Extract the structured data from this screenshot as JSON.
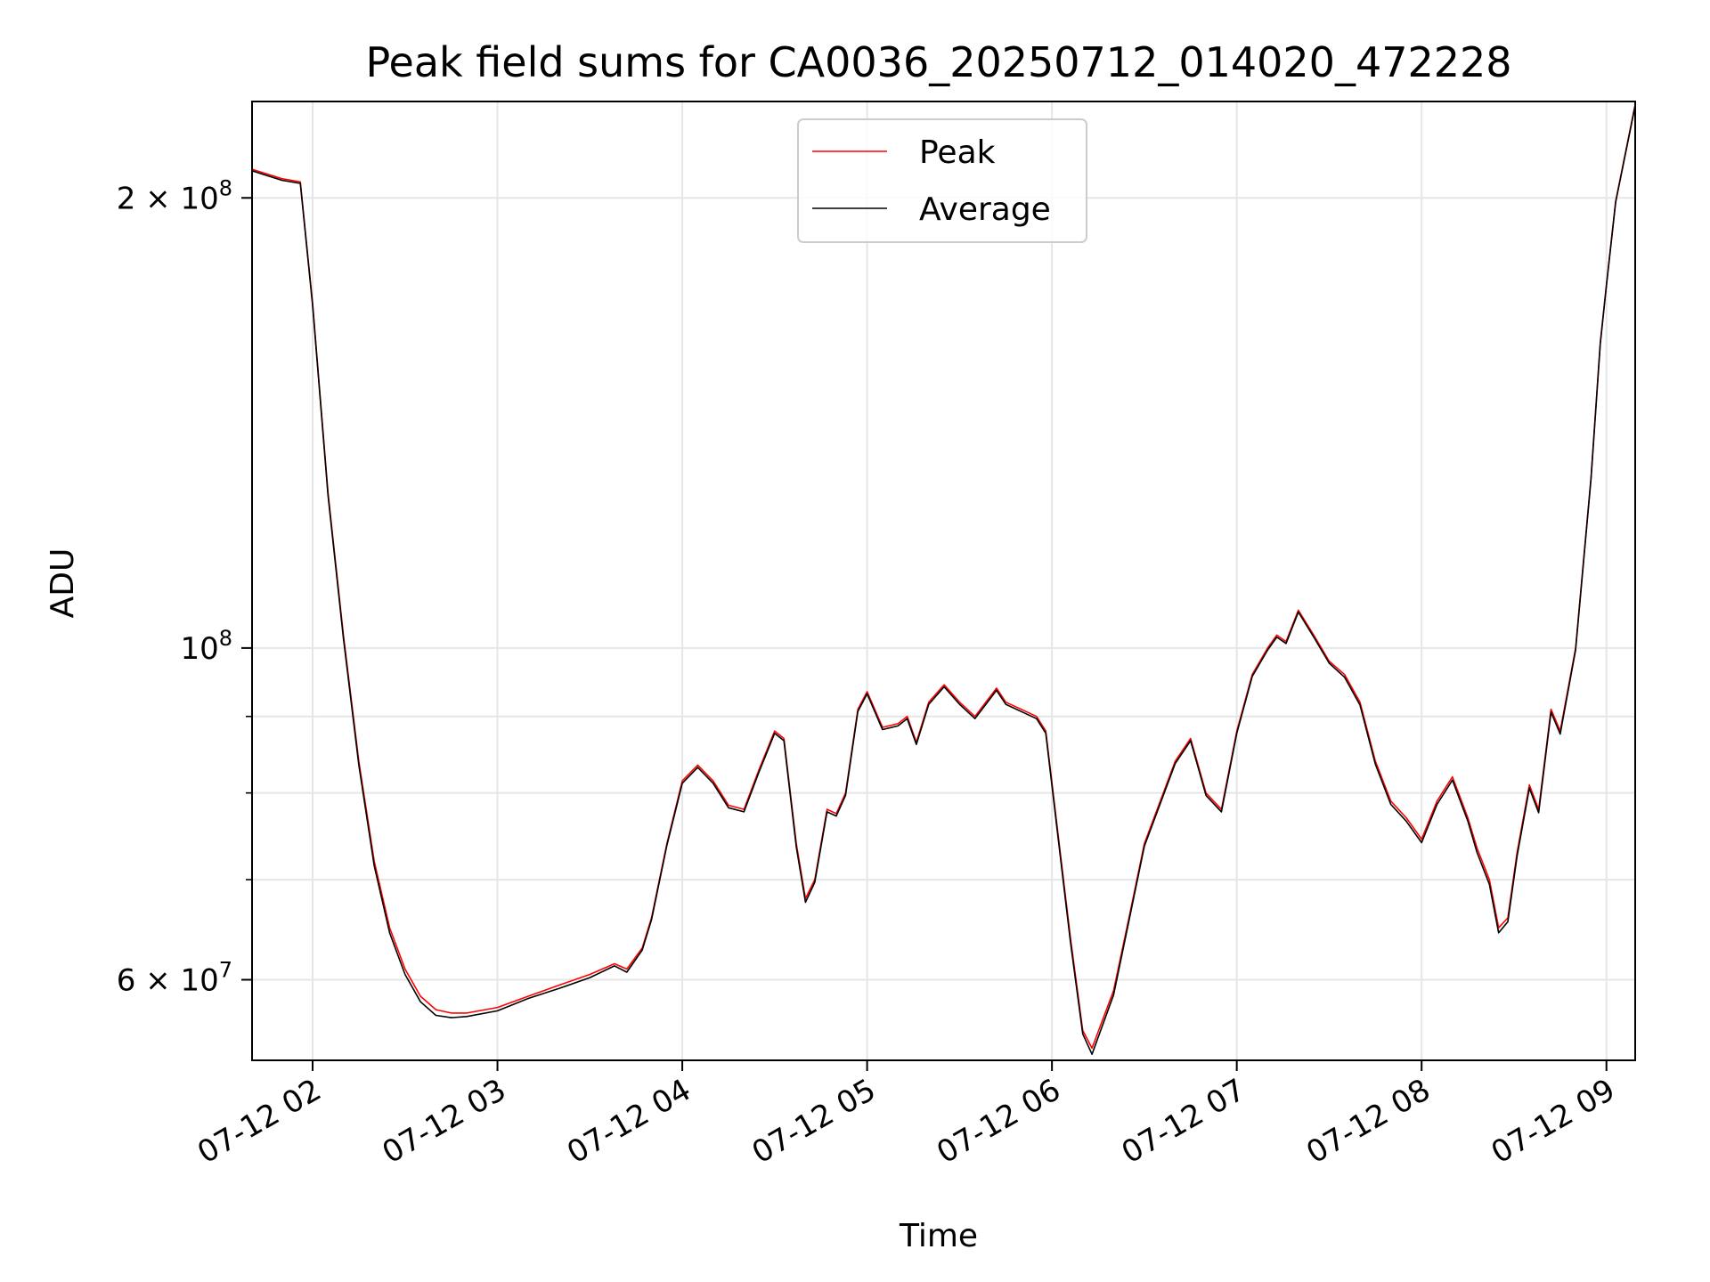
{
  "chart_data": {
    "type": "line",
    "title": "Peak field sums for CA0036_20250712_014020_472228",
    "xlabel": "Time",
    "ylabel": "ADU",
    "y_scale": "log",
    "ylim": [
      53000000,
      232000000
    ],
    "xlim": [
      "2025-07-12T01:40:20",
      "2025-07-12T09:09:20"
    ],
    "grid": true,
    "legend_position": "upper center",
    "x_ticks": [
      {
        "t": "2025-07-12T02:00:00",
        "label": "07-12 02"
      },
      {
        "t": "2025-07-12T03:00:00",
        "label": "07-12 03"
      },
      {
        "t": "2025-07-12T04:00:00",
        "label": "07-12 04"
      },
      {
        "t": "2025-07-12T05:00:00",
        "label": "07-12 05"
      },
      {
        "t": "2025-07-12T06:00:00",
        "label": "07-12 06"
      },
      {
        "t": "2025-07-12T07:00:00",
        "label": "07-12 07"
      },
      {
        "t": "2025-07-12T08:00:00",
        "label": "07-12 08"
      },
      {
        "t": "2025-07-12T09:00:00",
        "label": "07-12 09"
      }
    ],
    "y_ticks_major": [
      {
        "value": 60000000,
        "base": "6 × 10",
        "exp": "7"
      },
      {
        "value": 100000000,
        "base": "10",
        "exp": "8"
      },
      {
        "value": 200000000,
        "base": "2 × 10",
        "exp": "8"
      }
    ],
    "y_ticks_minor": [
      70000000,
      80000000,
      90000000
    ],
    "x": [
      "2025-07-12T01:40:20",
      "2025-07-12T01:50:00",
      "2025-07-12T01:56:00",
      "2025-07-12T02:00:00",
      "2025-07-12T02:05:00",
      "2025-07-12T02:10:00",
      "2025-07-12T02:15:00",
      "2025-07-12T02:20:00",
      "2025-07-12T02:25:00",
      "2025-07-12T02:30:00",
      "2025-07-12T02:35:00",
      "2025-07-12T02:40:00",
      "2025-07-12T02:45:00",
      "2025-07-12T02:50:00",
      "2025-07-12T03:00:00",
      "2025-07-12T03:10:00",
      "2025-07-12T03:20:00",
      "2025-07-12T03:30:00",
      "2025-07-12T03:38:00",
      "2025-07-12T03:42:00",
      "2025-07-12T03:47:00",
      "2025-07-12T03:50:00",
      "2025-07-12T03:55:00",
      "2025-07-12T04:00:00",
      "2025-07-12T04:05:00",
      "2025-07-12T04:10:00",
      "2025-07-12T04:15:00",
      "2025-07-12T04:20:00",
      "2025-07-12T04:25:00",
      "2025-07-12T04:30:00",
      "2025-07-12T04:33:00",
      "2025-07-12T04:37:00",
      "2025-07-12T04:40:00",
      "2025-07-12T04:43:00",
      "2025-07-12T04:47:00",
      "2025-07-12T04:50:00",
      "2025-07-12T04:53:00",
      "2025-07-12T04:57:00",
      "2025-07-12T05:00:00",
      "2025-07-12T05:05:00",
      "2025-07-12T05:10:00",
      "2025-07-12T05:13:00",
      "2025-07-12T05:16:00",
      "2025-07-12T05:20:00",
      "2025-07-12T05:25:00",
      "2025-07-12T05:30:00",
      "2025-07-12T05:35:00",
      "2025-07-12T05:42:00",
      "2025-07-12T05:45:00",
      "2025-07-12T05:55:00",
      "2025-07-12T05:58:00",
      "2025-07-12T06:02:00",
      "2025-07-12T06:06:00",
      "2025-07-12T06:10:00",
      "2025-07-12T06:13:00",
      "2025-07-12T06:20:00",
      "2025-07-12T06:25:00",
      "2025-07-12T06:30:00",
      "2025-07-12T06:40:00",
      "2025-07-12T06:45:00",
      "2025-07-12T06:50:00",
      "2025-07-12T06:55:00",
      "2025-07-12T07:00:00",
      "2025-07-12T07:05:00",
      "2025-07-12T07:10:00",
      "2025-07-12T07:13:00",
      "2025-07-12T07:16:00",
      "2025-07-12T07:20:00",
      "2025-07-12T07:25:00",
      "2025-07-12T07:30:00",
      "2025-07-12T07:35:00",
      "2025-07-12T07:40:00",
      "2025-07-12T07:45:00",
      "2025-07-12T07:50:00",
      "2025-07-12T07:55:00",
      "2025-07-12T08:00:00",
      "2025-07-12T08:05:00",
      "2025-07-12T08:10:00",
      "2025-07-12T08:15:00",
      "2025-07-12T08:18:00",
      "2025-07-12T08:22:00",
      "2025-07-12T08:25:00",
      "2025-07-12T08:28:00",
      "2025-07-12T08:31:00",
      "2025-07-12T08:35:00",
      "2025-07-12T08:38:00",
      "2025-07-12T08:42:00",
      "2025-07-12T08:45:00",
      "2025-07-12T08:50:00",
      "2025-07-12T08:55:00",
      "2025-07-12T08:58:00",
      "2025-07-12T09:00:00",
      "2025-07-12T09:03:00",
      "2025-07-12T09:09:20"
    ],
    "series": [
      {
        "name": "Peak",
        "color": "#ff0000",
        "values": [
          209000000,
          206000000,
          205000000,
          170000000,
          127000000,
          102000000,
          84000000,
          72000000,
          65000000,
          61000000,
          58500000,
          57300000,
          57000000,
          57000000,
          57500000,
          58500000,
          59500000,
          60500000,
          61500000,
          61000000,
          63000000,
          66000000,
          74000000,
          81500000,
          83500000,
          81500000,
          78500000,
          78000000,
          83000000,
          88000000,
          87000000,
          74000000,
          68000000,
          70000000,
          78000000,
          77500000,
          80000000,
          91000000,
          93500000,
          88500000,
          89000000,
          90000000,
          86500000,
          92000000,
          94500000,
          92000000,
          90000000,
          94000000,
          92000000,
          90000000,
          88000000,
          75000000,
          64000000,
          55500000,
          54000000,
          59000000,
          66000000,
          74000000,
          84000000,
          87000000,
          80000000,
          78000000,
          88000000,
          96000000,
          100000000,
          102000000,
          101000000,
          106000000,
          102000000,
          98000000,
          96000000,
          92000000,
          84000000,
          79000000,
          77000000,
          74500000,
          79000000,
          82000000,
          77000000,
          73500000,
          70000000,
          65000000,
          66000000,
          73000000,
          81000000,
          78000000,
          91000000,
          88000000,
          100000000,
          130000000,
          160000000,
          175000000,
          199000000,
          231000000
        ]
      },
      {
        "name": "Average",
        "color": "#000000",
        "values": [
          208500000,
          205500000,
          204500000,
          169500000,
          126500000,
          101500000,
          83500000,
          71500000,
          64500000,
          60500000,
          58000000,
          56800000,
          56600000,
          56700000,
          57200000,
          58300000,
          59200000,
          60200000,
          61300000,
          60700000,
          62800000,
          65800000,
          73800000,
          81200000,
          83200000,
          81200000,
          78200000,
          77700000,
          82700000,
          87700000,
          86700000,
          73600000,
          67600000,
          69700000,
          77700000,
          77200000,
          79700000,
          90700000,
          93200000,
          88200000,
          88700000,
          89700000,
          86200000,
          91700000,
          94200000,
          91700000,
          89700000,
          93700000,
          91700000,
          89700000,
          87700000,
          74600000,
          63600000,
          55200000,
          53500000,
          58600000,
          65700000,
          73700000,
          83700000,
          86700000,
          79700000,
          77700000,
          87700000,
          95700000,
          99700000,
          101700000,
          100700000,
          105700000,
          101700000,
          97700000,
          95600000,
          91600000,
          83600000,
          78600000,
          76600000,
          74100000,
          78600000,
          81600000,
          76600000,
          73000000,
          69500000,
          64500000,
          65600000,
          72600000,
          80600000,
          77600000,
          90600000,
          87600000,
          99700000,
          129700000,
          159700000,
          174700000,
          198700000,
          230500000
        ]
      }
    ]
  }
}
